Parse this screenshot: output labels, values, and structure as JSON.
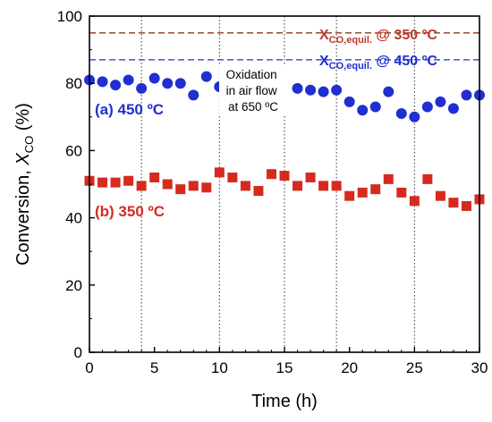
{
  "chart_data": {
    "type": "scatter",
    "xlabel": "Time (h)",
    "ylabel": {
      "prefix": "Conversion, ",
      "var": "X",
      "sub": "CO",
      "suffix": " (%)"
    },
    "xlim": [
      0,
      30
    ],
    "ylim": [
      0,
      100
    ],
    "xticks": [
      0,
      5,
      10,
      15,
      20,
      25,
      30
    ],
    "yticks": [
      0,
      20,
      40,
      60,
      80,
      100
    ],
    "grid": false,
    "vertical_markers_x": [
      4,
      10,
      15,
      19,
      25
    ],
    "equilibrium_lines": [
      {
        "y": 95,
        "color": "#8b3a1a",
        "label_main": "X",
        "label_sub": "CO,equil.",
        "label_rest": " @ 350 ºC",
        "label_color": "#c0392b"
      },
      {
        "y": 87,
        "color": "#1f2fd1",
        "label_main": "X",
        "label_sub": "CO,equil.",
        "label_rest": " @ 450 ºC",
        "label_color": "#1f2fd1"
      }
    ],
    "series": [
      {
        "name": "(a) 450 ºC",
        "marker": "circle",
        "color": "#1f2fd1",
        "x": [
          0,
          1,
          2,
          3,
          4,
          5,
          6,
          7,
          8,
          9,
          10,
          16,
          17,
          18,
          19,
          20,
          21,
          22,
          23,
          24,
          25,
          26,
          27,
          28,
          29,
          30
        ],
        "y": [
          81,
          80.5,
          79.5,
          81,
          78.5,
          81.5,
          80,
          80,
          76.5,
          82,
          79,
          78.5,
          78,
          77.5,
          78,
          74.5,
          72,
          73,
          77.5,
          71,
          70,
          73,
          74.5,
          72.5,
          76.5,
          76.5
        ]
      },
      {
        "name": "(b) 350 ºC",
        "marker": "square",
        "color": "#d62a1f",
        "x": [
          0,
          1,
          2,
          3,
          4,
          5,
          6,
          7,
          8,
          9,
          10,
          11,
          12,
          13,
          14,
          15,
          16,
          17,
          18,
          19,
          20,
          21,
          22,
          23,
          24,
          25,
          26,
          27,
          28,
          29,
          30
        ],
        "y": [
          51,
          50.5,
          50.5,
          51,
          49.5,
          52,
          50,
          48.5,
          49.5,
          49,
          53.5,
          52,
          49.5,
          48,
          53,
          52.5,
          49.5,
          52,
          49.5,
          49.5,
          46.5,
          47.5,
          48.5,
          51.5,
          47.5,
          45,
          51.5,
          46.5,
          44.5,
          43.5,
          45.5
        ]
      }
    ],
    "annotations": [
      {
        "id": "oxidation",
        "lines": [
          "Oxidation",
          "in air flow",
          "at 650 ºC"
        ]
      }
    ]
  }
}
